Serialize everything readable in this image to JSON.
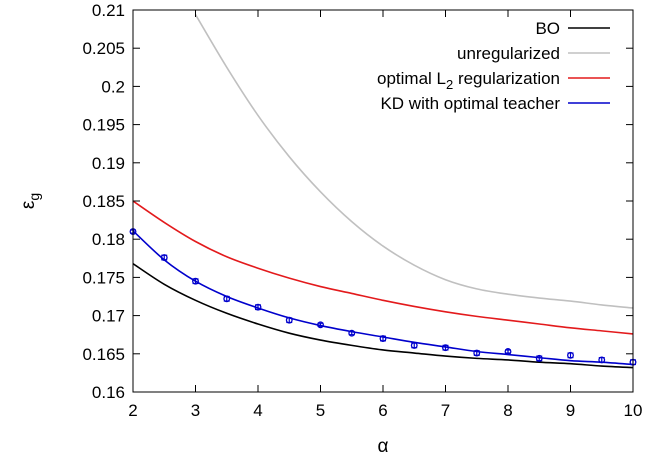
{
  "chart_data": {
    "type": "line",
    "title": "",
    "xlabel": "α",
    "ylabel": "ε",
    "ylabel_sub": "g",
    "xlim": [
      2,
      10
    ],
    "ylim": [
      0.16,
      0.21
    ],
    "xticks": [
      "2",
      "3",
      "4",
      "5",
      "6",
      "7",
      "8",
      "9",
      "10"
    ],
    "yticks": [
      "0.16",
      "0.165",
      "0.17",
      "0.175",
      "0.18",
      "0.185",
      "0.19",
      "0.195",
      "0.2",
      "0.205",
      "0.21"
    ],
    "grid": false,
    "legend_position": "top-right",
    "series": [
      {
        "name": "BO",
        "color": "#000000",
        "x": [
          2,
          2.5,
          3,
          3.5,
          4,
          4.5,
          5,
          5.5,
          6,
          6.5,
          7,
          7.5,
          8,
          8.5,
          9,
          9.5,
          10
        ],
        "y": [
          0.1768,
          0.1741,
          0.172,
          0.1703,
          0.1689,
          0.1677,
          0.1668,
          0.1661,
          0.1655,
          0.1651,
          0.1647,
          0.1644,
          0.1642,
          0.1639,
          0.1637,
          0.1634,
          0.1632
        ]
      },
      {
        "name": "unregularized",
        "color": "#c0c0c0",
        "x": [
          3,
          3.5,
          4,
          4.5,
          5,
          5.5,
          6,
          6.5,
          7,
          7.5,
          8,
          8.5,
          9,
          9.5,
          10
        ],
        "y": [
          0.2094,
          0.2025,
          0.1962,
          0.1908,
          0.1862,
          0.1823,
          0.1791,
          0.1766,
          0.1747,
          0.1735,
          0.1728,
          0.1723,
          0.1719,
          0.1714,
          0.171
        ]
      },
      {
        "name": "optimal L",
        "name_subscript": "2",
        "name_suffix": " regularization",
        "color": "#e31a1c",
        "x": [
          2,
          2.5,
          3,
          3.5,
          4,
          4.5,
          5,
          5.5,
          6,
          6.5,
          7,
          7.5,
          8,
          8.5,
          9,
          9.5,
          10
        ],
        "y": [
          0.185,
          0.1822,
          0.1797,
          0.1777,
          0.1762,
          0.1749,
          0.1738,
          0.1729,
          0.172,
          0.1712,
          0.1705,
          0.1699,
          0.1694,
          0.1689,
          0.1684,
          0.168,
          0.1676
        ]
      },
      {
        "name": "KD with optimal teacher",
        "color": "#0000cc",
        "x": [
          2,
          2.5,
          3,
          3.5,
          4,
          4.5,
          5,
          5.5,
          6,
          6.5,
          7,
          7.5,
          8,
          8.5,
          9,
          9.5,
          10
        ],
        "y": [
          0.1811,
          0.1773,
          0.1745,
          0.1725,
          0.171,
          0.1697,
          0.1687,
          0.1679,
          0.1672,
          0.1665,
          0.1659,
          0.1653,
          0.1649,
          0.1645,
          0.1641,
          0.1639,
          0.1636
        ]
      },
      {
        "name": "",
        "type": "errorbar",
        "color": "#0000cc",
        "x": [
          2,
          2.5,
          3,
          3.5,
          4,
          4.5,
          5,
          5.5,
          6,
          6.5,
          7,
          7.5,
          8,
          8.5,
          9,
          9.5,
          10
        ],
        "y": [
          0.181,
          0.1776,
          0.1745,
          0.1722,
          0.1711,
          0.1694,
          0.1688,
          0.1677,
          0.167,
          0.1661,
          0.1658,
          0.1651,
          0.1653,
          0.1644,
          0.1648,
          0.1642,
          0.1639
        ],
        "err": [
          0.0002,
          0.0003,
          0.0003,
          0.0003,
          0.0003,
          0.0003,
          0.0002,
          0.0002,
          0.0003,
          0.0003,
          0.0003,
          0.0003,
          0.0002,
          0.0003,
          0.0003,
          0.0003,
          0.0003
        ]
      }
    ]
  }
}
